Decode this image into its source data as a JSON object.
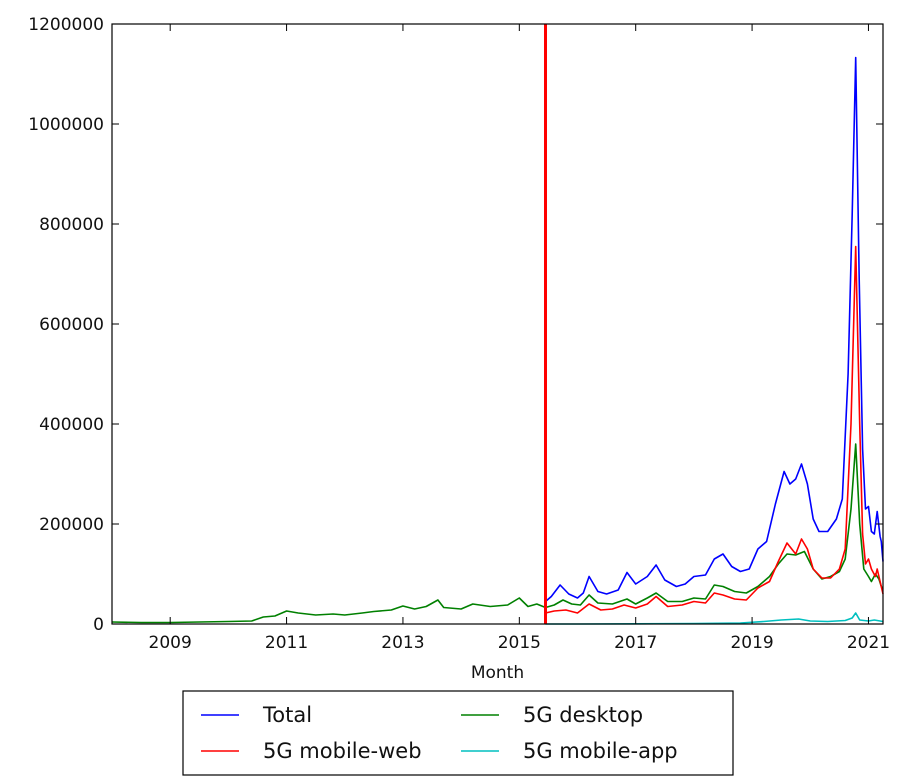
{
  "chart_data": {
    "type": "line",
    "title": "",
    "xlabel": "Month",
    "ylabel": "",
    "xlim": [
      2008.0,
      2021.25
    ],
    "ylim": [
      0,
      1200000
    ],
    "x_ticks": [
      2009,
      2011,
      2013,
      2015,
      2017,
      2019,
      2021
    ],
    "x_tick_labels": [
      "2009",
      "2011",
      "2013",
      "2015",
      "2017",
      "2019",
      "2021"
    ],
    "y_ticks": [
      0,
      200000,
      400000,
      600000,
      800000,
      1000000,
      1200000
    ],
    "y_tick_labels": [
      "0",
      "200000",
      "400000",
      "600000",
      "800000",
      "1000000",
      "1200000"
    ],
    "grid": false,
    "legend": {
      "placement": "below",
      "columns": 2
    },
    "vertical_marker": {
      "x": 2015.45,
      "color": "#ff0000"
    },
    "series": [
      {
        "name": "Total",
        "color": "#0000ff",
        "points": [
          [
            2015.45,
            45000
          ],
          [
            2015.55,
            55000
          ],
          [
            2015.7,
            78000
          ],
          [
            2015.85,
            60000
          ],
          [
            2016.0,
            52000
          ],
          [
            2016.1,
            62000
          ],
          [
            2016.2,
            95000
          ],
          [
            2016.35,
            65000
          ],
          [
            2016.5,
            60000
          ],
          [
            2016.7,
            68000
          ],
          [
            2016.85,
            103000
          ],
          [
            2017.0,
            80000
          ],
          [
            2017.2,
            95000
          ],
          [
            2017.35,
            118000
          ],
          [
            2017.5,
            88000
          ],
          [
            2017.7,
            75000
          ],
          [
            2017.85,
            80000
          ],
          [
            2018.0,
            95000
          ],
          [
            2018.2,
            98000
          ],
          [
            2018.35,
            130000
          ],
          [
            2018.5,
            140000
          ],
          [
            2018.65,
            115000
          ],
          [
            2018.8,
            105000
          ],
          [
            2018.95,
            110000
          ],
          [
            2019.1,
            150000
          ],
          [
            2019.25,
            165000
          ],
          [
            2019.4,
            240000
          ],
          [
            2019.55,
            305000
          ],
          [
            2019.65,
            280000
          ],
          [
            2019.75,
            290000
          ],
          [
            2019.85,
            320000
          ],
          [
            2019.95,
            280000
          ],
          [
            2020.05,
            210000
          ],
          [
            2020.15,
            185000
          ],
          [
            2020.3,
            185000
          ],
          [
            2020.45,
            210000
          ],
          [
            2020.55,
            250000
          ],
          [
            2020.65,
            500000
          ],
          [
            2020.72,
            820000
          ],
          [
            2020.78,
            1133000
          ],
          [
            2020.84,
            700000
          ],
          [
            2020.9,
            350000
          ],
          [
            2020.95,
            230000
          ],
          [
            2021.0,
            235000
          ],
          [
            2021.05,
            185000
          ],
          [
            2021.1,
            180000
          ],
          [
            2021.15,
            225000
          ],
          [
            2021.2,
            175000
          ],
          [
            2021.22,
            165000
          ],
          [
            2021.25,
            125000
          ]
        ]
      },
      {
        "name": "5G desktop",
        "color": "#008000",
        "points": [
          [
            2008.0,
            4000
          ],
          [
            2008.5,
            3000
          ],
          [
            2009.0,
            3000
          ],
          [
            2009.5,
            4000
          ],
          [
            2010.0,
            5000
          ],
          [
            2010.4,
            6000
          ],
          [
            2010.6,
            14000
          ],
          [
            2010.8,
            16000
          ],
          [
            2011.0,
            26000
          ],
          [
            2011.2,
            22000
          ],
          [
            2011.5,
            18000
          ],
          [
            2011.8,
            20000
          ],
          [
            2012.0,
            18000
          ],
          [
            2012.3,
            22000
          ],
          [
            2012.5,
            25000
          ],
          [
            2012.8,
            28000
          ],
          [
            2013.0,
            36000
          ],
          [
            2013.2,
            30000
          ],
          [
            2013.4,
            35000
          ],
          [
            2013.6,
            48000
          ],
          [
            2013.7,
            33000
          ],
          [
            2014.0,
            30000
          ],
          [
            2014.2,
            40000
          ],
          [
            2014.5,
            35000
          ],
          [
            2014.8,
            38000
          ],
          [
            2015.0,
            52000
          ],
          [
            2015.15,
            35000
          ],
          [
            2015.3,
            40000
          ],
          [
            2015.45,
            33000
          ],
          [
            2015.6,
            38000
          ],
          [
            2015.75,
            48000
          ],
          [
            2015.9,
            40000
          ],
          [
            2016.05,
            38000
          ],
          [
            2016.2,
            58000
          ],
          [
            2016.35,
            42000
          ],
          [
            2016.6,
            40000
          ],
          [
            2016.85,
            50000
          ],
          [
            2017.0,
            40000
          ],
          [
            2017.2,
            52000
          ],
          [
            2017.35,
            62000
          ],
          [
            2017.55,
            45000
          ],
          [
            2017.8,
            45000
          ],
          [
            2018.0,
            52000
          ],
          [
            2018.2,
            50000
          ],
          [
            2018.35,
            78000
          ],
          [
            2018.5,
            75000
          ],
          [
            2018.7,
            65000
          ],
          [
            2018.9,
            62000
          ],
          [
            2019.1,
            75000
          ],
          [
            2019.3,
            95000
          ],
          [
            2019.45,
            120000
          ],
          [
            2019.6,
            140000
          ],
          [
            2019.75,
            138000
          ],
          [
            2019.9,
            145000
          ],
          [
            2020.05,
            110000
          ],
          [
            2020.2,
            90000
          ],
          [
            2020.35,
            95000
          ],
          [
            2020.5,
            105000
          ],
          [
            2020.6,
            130000
          ],
          [
            2020.7,
            230000
          ],
          [
            2020.78,
            360000
          ],
          [
            2020.85,
            200000
          ],
          [
            2020.92,
            110000
          ],
          [
            2021.0,
            95000
          ],
          [
            2021.05,
            85000
          ],
          [
            2021.12,
            100000
          ],
          [
            2021.18,
            90000
          ],
          [
            2021.22,
            75000
          ],
          [
            2021.25,
            70000
          ]
        ]
      },
      {
        "name": "5G mobile-web",
        "color": "#ff0000",
        "points": [
          [
            2015.45,
            22000
          ],
          [
            2015.6,
            26000
          ],
          [
            2015.8,
            28000
          ],
          [
            2016.0,
            22000
          ],
          [
            2016.2,
            40000
          ],
          [
            2016.4,
            28000
          ],
          [
            2016.6,
            30000
          ],
          [
            2016.8,
            38000
          ],
          [
            2017.0,
            32000
          ],
          [
            2017.2,
            40000
          ],
          [
            2017.35,
            55000
          ],
          [
            2017.55,
            35000
          ],
          [
            2017.8,
            38000
          ],
          [
            2018.0,
            45000
          ],
          [
            2018.2,
            42000
          ],
          [
            2018.35,
            62000
          ],
          [
            2018.5,
            58000
          ],
          [
            2018.7,
            50000
          ],
          [
            2018.9,
            48000
          ],
          [
            2019.1,
            72000
          ],
          [
            2019.3,
            85000
          ],
          [
            2019.45,
            125000
          ],
          [
            2019.6,
            162000
          ],
          [
            2019.75,
            140000
          ],
          [
            2019.85,
            170000
          ],
          [
            2019.95,
            150000
          ],
          [
            2020.05,
            110000
          ],
          [
            2020.2,
            92000
          ],
          [
            2020.35,
            92000
          ],
          [
            2020.5,
            110000
          ],
          [
            2020.6,
            150000
          ],
          [
            2020.7,
            400000
          ],
          [
            2020.78,
            755000
          ],
          [
            2020.85,
            400000
          ],
          [
            2020.9,
            180000
          ],
          [
            2020.95,
            120000
          ],
          [
            2021.0,
            130000
          ],
          [
            2021.05,
            110000
          ],
          [
            2021.12,
            95000
          ],
          [
            2021.15,
            110000
          ],
          [
            2021.2,
            85000
          ],
          [
            2021.25,
            60000
          ]
        ]
      },
      {
        "name": "5G mobile-app",
        "color": "#00bfbf",
        "points": [
          [
            2015.45,
            0
          ],
          [
            2016.0,
            0
          ],
          [
            2017.0,
            500
          ],
          [
            2018.0,
            1000
          ],
          [
            2018.8,
            2000
          ],
          [
            2019.2,
            5000
          ],
          [
            2019.5,
            8000
          ],
          [
            2019.8,
            10000
          ],
          [
            2020.0,
            6000
          ],
          [
            2020.3,
            5000
          ],
          [
            2020.6,
            7000
          ],
          [
            2020.72,
            12000
          ],
          [
            2020.78,
            22000
          ],
          [
            2020.85,
            8000
          ],
          [
            2021.0,
            6000
          ],
          [
            2021.1,
            8000
          ],
          [
            2021.2,
            6000
          ],
          [
            2021.25,
            5000
          ]
        ]
      }
    ]
  }
}
